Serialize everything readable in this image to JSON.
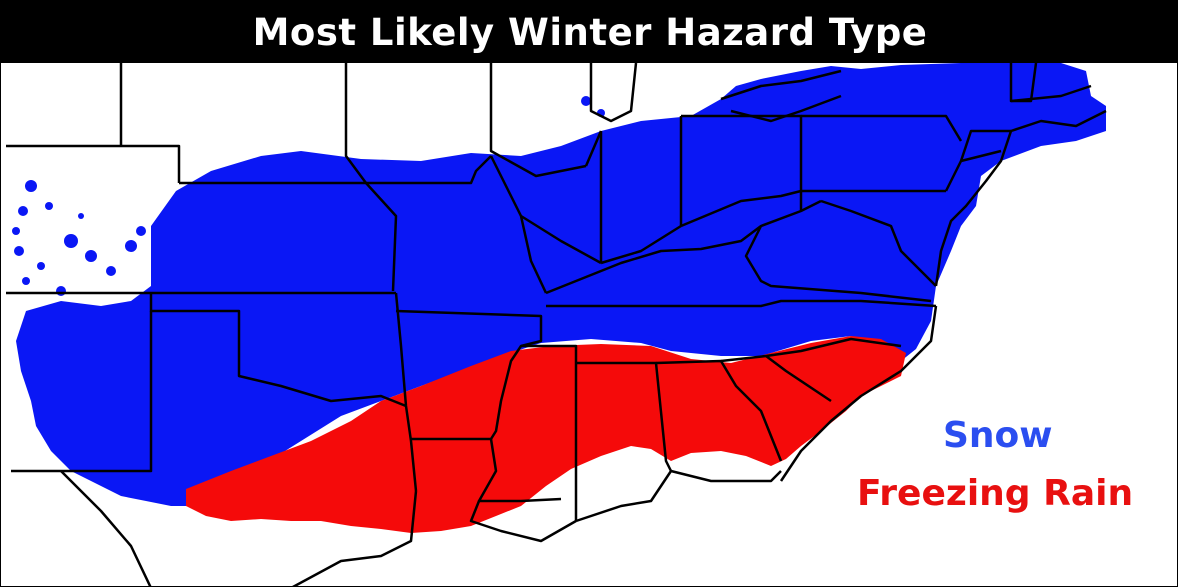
{
  "title": "Most Likely Winter Hazard Type",
  "legend": {
    "snow": {
      "label": "Snow",
      "color": "#2b4ef0"
    },
    "freezing_rain": {
      "label": "Freezing Rain",
      "color": "#e81010"
    }
  },
  "colors": {
    "snow_fill": "#0a17f5",
    "ice_fill": "#f50a0a",
    "border": "#000000",
    "background": "#ffffff",
    "title_bar": "#000000",
    "title_text": "#ffffff"
  }
}
